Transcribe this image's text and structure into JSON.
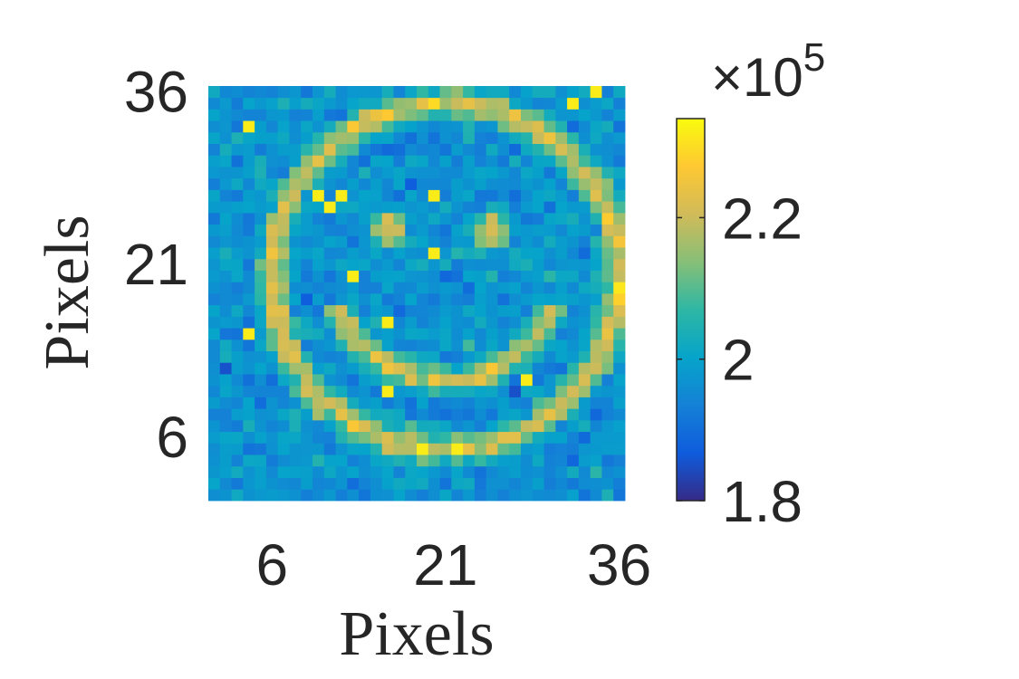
{
  "chart_data": {
    "type": "heatmap",
    "title": "",
    "xlabel": "Pixels",
    "ylabel": "Pixels",
    "grid_size": 36,
    "x_range": [
      1,
      36
    ],
    "y_range": [
      1,
      36
    ],
    "x_ticks": [
      "6",
      "21",
      "36"
    ],
    "y_ticks": [
      "6",
      "21",
      "36"
    ],
    "x_tick_values": [
      6,
      21,
      36
    ],
    "y_tick_values": [
      6,
      21,
      36
    ],
    "colorbar": {
      "colormap": "parula",
      "range": [
        180000,
        234000
      ],
      "tick_values": [
        180000,
        200000,
        220000
      ],
      "tick_labels": [
        "1.8",
        "2",
        "2.2"
      ],
      "exponent_base": "×10",
      "exponent_power": "5"
    },
    "background_level": 197000,
    "feature_level": 222000,
    "image_description_values": {
      "face_ring_center": [
        21,
        20
      ],
      "face_ring_radius": 15
    },
    "colors": {
      "parula_stops": [
        "#352a87",
        "#0f5cdd",
        "#1481d6",
        "#06a4ca",
        "#2eb7a4",
        "#87bf77",
        "#d1bb59",
        "#fec832",
        "#f9fb0e"
      ]
    }
  }
}
